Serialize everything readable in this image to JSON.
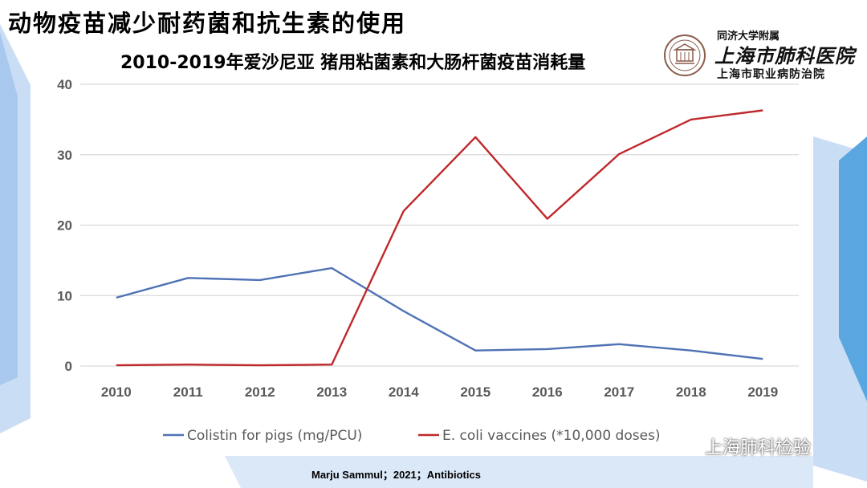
{
  "slide": {
    "title": "动物疫苗减少耐药菌和抗生素的使用",
    "citation": "Marju Sammul；2021；Antibiotics"
  },
  "hospital": {
    "affiliation": "同济大学附属",
    "name": "上海市肺科医院",
    "subtitle": "上海市职业病防治院",
    "logo_icon": "hospital-seal-icon"
  },
  "watermark": {
    "text": "上海肺科检验",
    "icon": "wechat-icon"
  },
  "colors": {
    "background_accent": "#c9ddf5",
    "colistin": "#4f72b5",
    "ecoli": "#c0282b",
    "grid": "#d9d9d9",
    "axis_text": "#595959"
  },
  "chart_data": {
    "type": "line",
    "title": "2010-2019年爱沙尼亚 猪用粘菌素和大肠杆菌疫苗消耗量",
    "xlabel": "",
    "ylabel": "",
    "x": [
      "2010",
      "2011",
      "2012",
      "2013",
      "2014",
      "2015",
      "2016",
      "2017",
      "2018",
      "2019"
    ],
    "ylim": [
      0,
      40
    ],
    "yticks": [
      0,
      10,
      20,
      30,
      40
    ],
    "grid": true,
    "legend": "bottom",
    "series": [
      {
        "name": "Colistin for pigs (mg/PCU)",
        "color": "#4f72b5",
        "values": [
          9.7,
          12.5,
          12.2,
          13.9,
          7.8,
          2.2,
          2.4,
          3.1,
          2.2,
          1.0
        ]
      },
      {
        "name": "E. coli vaccines (*10,000 doses)",
        "color": "#c0282b",
        "values": [
          0.1,
          0.2,
          0.1,
          0.2,
          22.0,
          32.5,
          20.9,
          30.1,
          35.0,
          36.3
        ]
      }
    ]
  }
}
